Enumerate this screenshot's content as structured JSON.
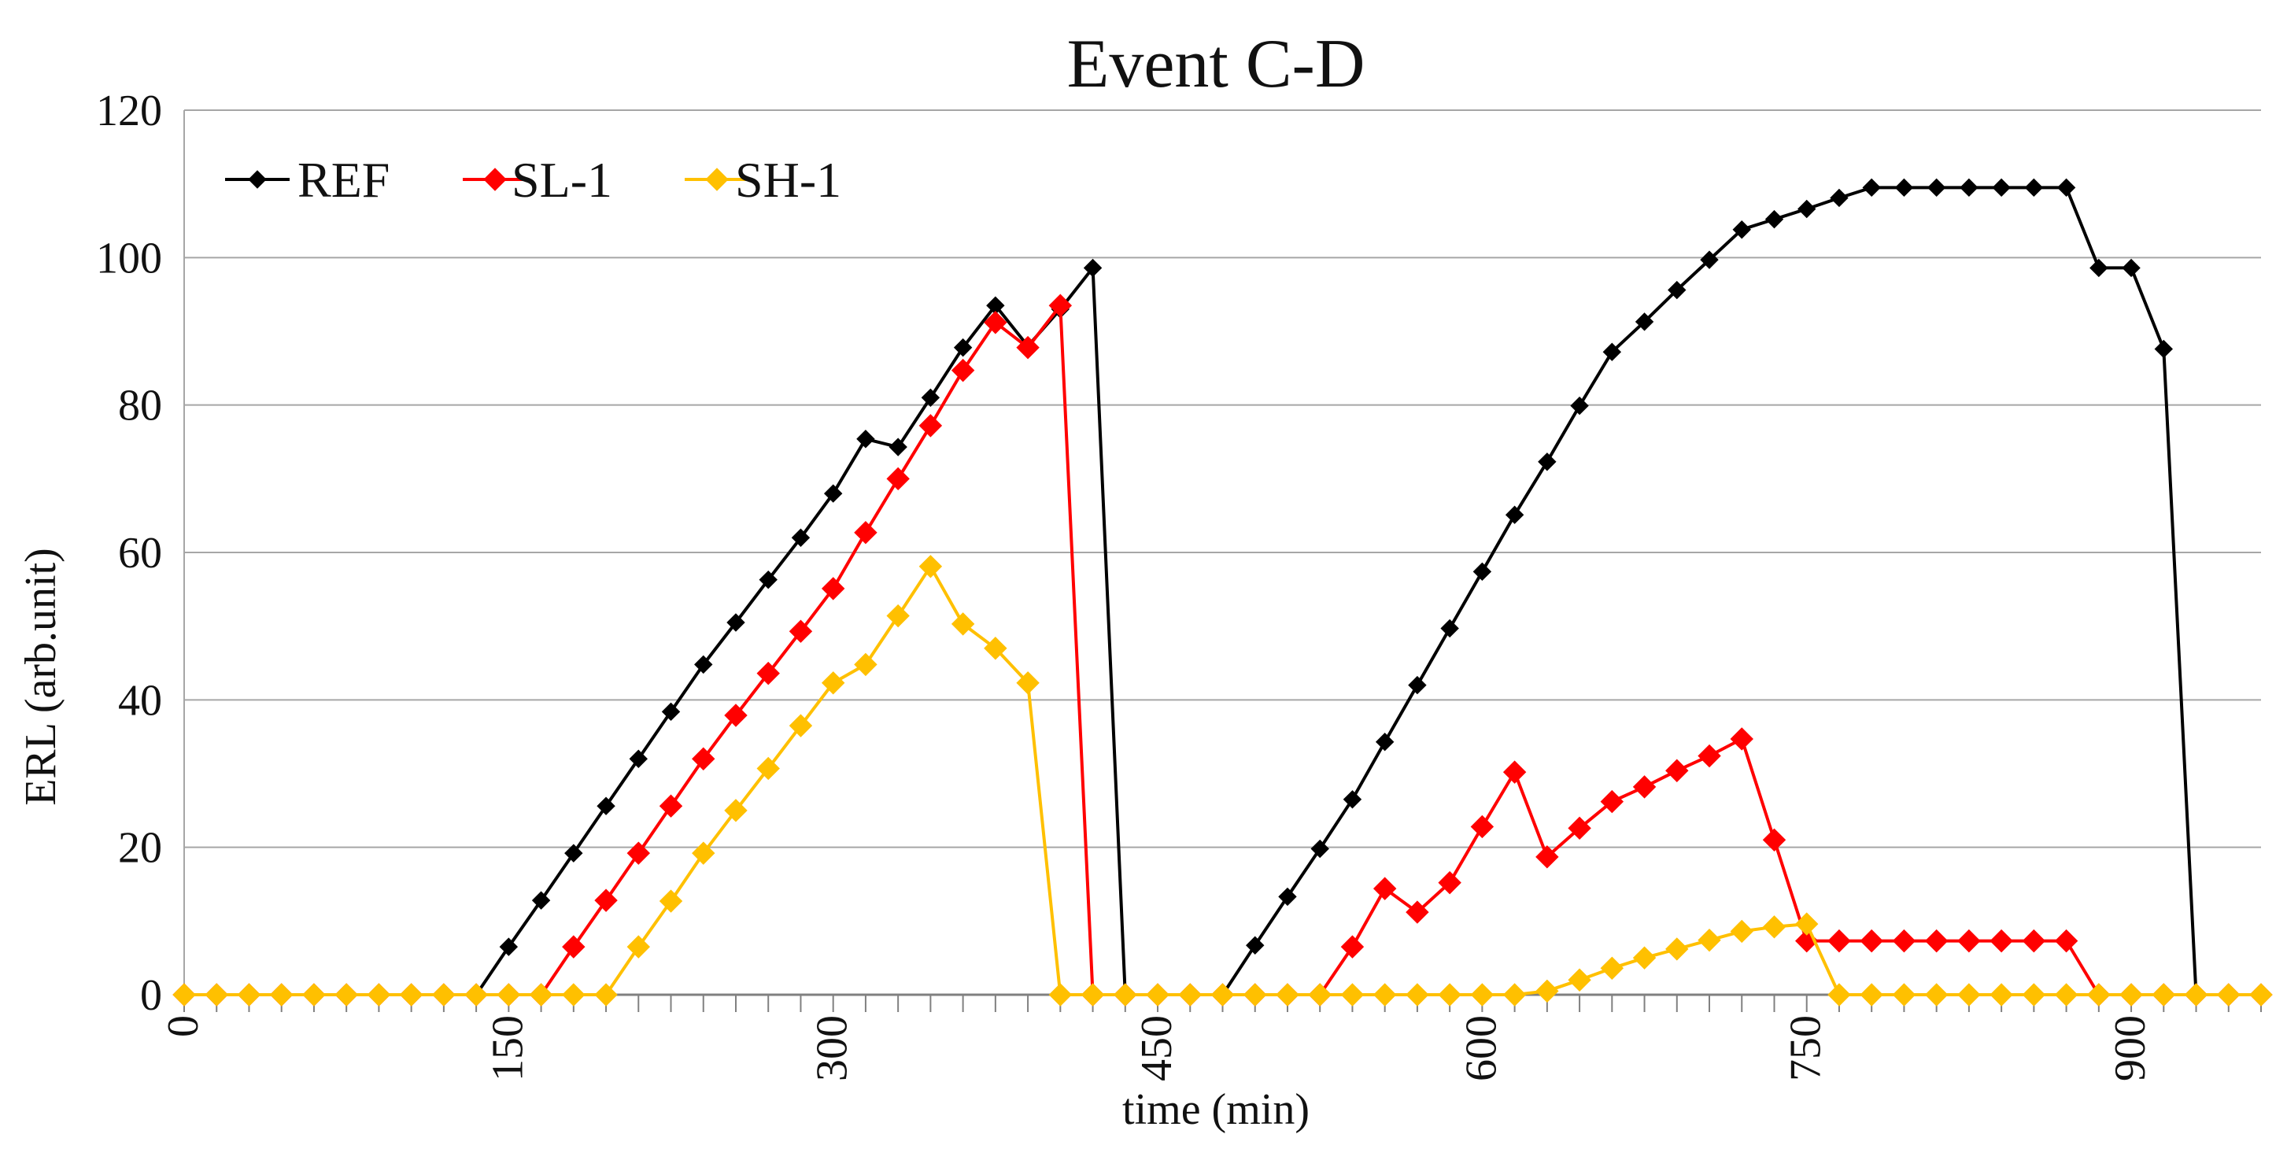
{
  "chart_data": {
    "type": "line",
    "title": "Event C-D",
    "xlabel": "time (min)",
    "ylabel": "ERL (arb.unit)",
    "xlim": [
      0,
      960
    ],
    "ylim": [
      0,
      120
    ],
    "x_ticks": [
      0,
      150,
      300,
      450,
      600,
      750,
      900
    ],
    "y_ticks": [
      0,
      20,
      40,
      60,
      80,
      100,
      120
    ],
    "x_minor_step": 15,
    "grid": "horizontal",
    "legend_position": "top-left",
    "x": [
      0,
      15,
      30,
      45,
      60,
      75,
      90,
      105,
      120,
      135,
      150,
      165,
      180,
      195,
      210,
      225,
      240,
      255,
      270,
      285,
      300,
      315,
      330,
      345,
      360,
      375,
      390,
      405,
      420,
      435,
      450,
      465,
      480,
      495,
      510,
      525,
      540,
      555,
      570,
      585,
      600,
      615,
      630,
      645,
      660,
      675,
      690,
      705,
      720,
      735,
      750,
      765,
      780,
      795,
      810,
      825,
      840,
      855,
      870,
      885,
      900,
      915,
      930,
      945,
      960
    ],
    "series": [
      {
        "name": "REF",
        "color": "#000000",
        "values": [
          0,
          0,
          0,
          0,
          0,
          0,
          0,
          0,
          0,
          0,
          6.5,
          12.8,
          19.2,
          25.6,
          32,
          38.4,
          44.8,
          50.5,
          56.3,
          62,
          68,
          75.4,
          74.3,
          81,
          87.8,
          93.5,
          88,
          93,
          98.6,
          0,
          0,
          0,
          0,
          6.7,
          13.3,
          19.8,
          26.5,
          34.3,
          42,
          49.7,
          57.4,
          65.1,
          72.3,
          79.9,
          87.2,
          91.3,
          95.6,
          99.7,
          103.8,
          105.2,
          106.6,
          108.1,
          109.5,
          109.5,
          109.5,
          109.5,
          109.5,
          109.5,
          109.5,
          98.6,
          98.6,
          87.6,
          0,
          0,
          0
        ]
      },
      {
        "name": "SL-1",
        "color": "#ff0000",
        "values": [
          0,
          0,
          0,
          0,
          0,
          0,
          0,
          0,
          0,
          0,
          0,
          0,
          6.5,
          12.8,
          19.2,
          25.6,
          32,
          37.9,
          43.6,
          49.3,
          55.1,
          62.7,
          70,
          77.2,
          84.7,
          91.2,
          87.8,
          93.5,
          0,
          0,
          0,
          0,
          0,
          0,
          0,
          0,
          6.5,
          14.4,
          11.2,
          15.2,
          22.8,
          30.2,
          18.7,
          22.6,
          26.2,
          28.2,
          30.4,
          32.4,
          34.7,
          21,
          7.3,
          7.3,
          7.3,
          7.3,
          7.3,
          7.3,
          7.3,
          7.3,
          7.3,
          0,
          0,
          0,
          0,
          0,
          0
        ]
      },
      {
        "name": "SH-1",
        "color": "#ffc000",
        "values": [
          0,
          0,
          0,
          0,
          0,
          0,
          0,
          0,
          0,
          0,
          0,
          0,
          0,
          0,
          6.5,
          12.7,
          19.2,
          25,
          30.7,
          36.5,
          42.3,
          44.8,
          51.4,
          58.1,
          50.3,
          47,
          42.3,
          0,
          0,
          0,
          0,
          0,
          0,
          0,
          0,
          0,
          0,
          0,
          0,
          0,
          0,
          0,
          0.5,
          2,
          3.6,
          5,
          6.2,
          7.4,
          8.6,
          9.2,
          9.6,
          0,
          0,
          0,
          0,
          0,
          0,
          0,
          0,
          0,
          0,
          0,
          0,
          0,
          0
        ]
      }
    ]
  }
}
